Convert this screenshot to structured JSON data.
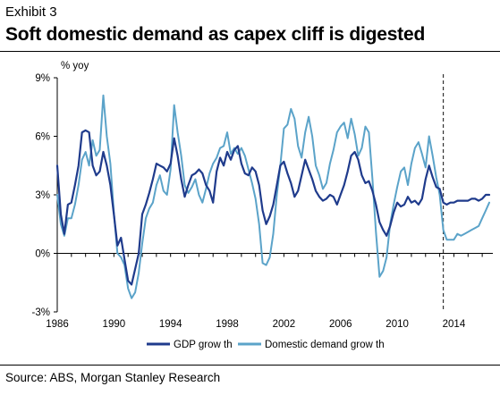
{
  "header": {
    "exhibit": "Exhibit 3",
    "title": "Soft domestic demand as capex cliff is digested"
  },
  "footer": {
    "source": "Source: ABS, Morgan Stanley Research"
  },
  "chart_data": {
    "type": "line",
    "ylabel": "% yoy",
    "xlim": [
      1986,
      2016.75
    ],
    "ylim": [
      -3,
      9
    ],
    "y_ticks": [
      9,
      6,
      3,
      0,
      -3
    ],
    "y_tick_labels": [
      "9%",
      "6%",
      "3%",
      "0%",
      "-3%"
    ],
    "x_ticks": [
      1986,
      1990,
      1994,
      1998,
      2002,
      2006,
      2010,
      2014
    ],
    "x_tick_labels": [
      "1986",
      "1990",
      "1994",
      "1998",
      "2002",
      "2006",
      "2010",
      "2014"
    ],
    "forecast_start": 2013.25,
    "legend_position": "bottom",
    "colors": {
      "gdp": "#1f3b8c",
      "domestic": "#5ba3c9"
    },
    "series": [
      {
        "name": "GDP grow th",
        "key": "gdp",
        "x": [
          1986,
          1986.25,
          1986.5,
          1986.75,
          1987,
          1987.25,
          1987.5,
          1987.75,
          1988,
          1988.25,
          1988.5,
          1988.75,
          1989,
          1989.25,
          1989.5,
          1989.75,
          1990,
          1990.25,
          1990.5,
          1990.75,
          1991,
          1991.25,
          1991.5,
          1991.75,
          1992,
          1992.25,
          1992.5,
          1992.75,
          1993,
          1993.25,
          1993.5,
          1993.75,
          1994,
          1994.25,
          1994.5,
          1994.75,
          1995,
          1995.25,
          1995.5,
          1995.75,
          1996,
          1996.25,
          1996.5,
          1996.75,
          1997,
          1997.25,
          1997.5,
          1997.75,
          1998,
          1998.25,
          1998.5,
          1998.75,
          1999,
          1999.25,
          1999.5,
          1999.75,
          2000,
          2000.25,
          2000.5,
          2000.75,
          2001,
          2001.25,
          2001.5,
          2001.75,
          2002,
          2002.25,
          2002.5,
          2002.75,
          2003,
          2003.25,
          2003.5,
          2003.75,
          2004,
          2004.25,
          2004.5,
          2004.75,
          2005,
          2005.25,
          2005.5,
          2005.75,
          2006,
          2006.25,
          2006.5,
          2006.75,
          2007,
          2007.25,
          2007.5,
          2007.75,
          2008,
          2008.25,
          2008.5,
          2008.75,
          2009,
          2009.25,
          2009.5,
          2009.75,
          2010,
          2010.25,
          2010.5,
          2010.75,
          2011,
          2011.25,
          2011.5,
          2011.75,
          2012,
          2012.25,
          2012.5,
          2012.75,
          2013,
          2013.25,
          2013.5,
          2013.75,
          2014,
          2014.25,
          2014.5,
          2014.75,
          2015,
          2015.25,
          2015.5,
          2015.75,
          2016,
          2016.25,
          2016.5
        ],
        "values": [
          4.5,
          2.0,
          1.0,
          2.5,
          2.6,
          3.5,
          4.5,
          6.2,
          6.3,
          6.2,
          4.5,
          4.0,
          4.2,
          5.2,
          4.5,
          3.5,
          2.0,
          0.4,
          0.8,
          -0.3,
          -1.4,
          -1.6,
          -0.8,
          0.0,
          2.0,
          2.5,
          3.1,
          3.8,
          4.6,
          4.5,
          4.4,
          4.2,
          4.6,
          5.9,
          5.0,
          3.8,
          2.9,
          3.5,
          4.0,
          4.1,
          4.3,
          4.1,
          3.5,
          3.2,
          2.6,
          4.2,
          4.9,
          4.5,
          5.2,
          4.8,
          5.3,
          5.5,
          4.6,
          4.1,
          4.0,
          4.4,
          4.2,
          3.5,
          2.2,
          1.5,
          1.9,
          2.5,
          3.5,
          4.5,
          4.7,
          4.1,
          3.6,
          2.9,
          3.2,
          4.0,
          4.8,
          4.3,
          3.8,
          3.2,
          2.9,
          2.7,
          2.8,
          3.0,
          2.9,
          2.5,
          3.0,
          3.5,
          4.2,
          5.0,
          5.2,
          4.8,
          4.0,
          3.6,
          3.7,
          3.2,
          2.5,
          1.6,
          1.2,
          0.9,
          1.4,
          2.1,
          2.6,
          2.4,
          2.5,
          2.9,
          2.6,
          2.7,
          2.5,
          2.8,
          3.8,
          4.5,
          3.9,
          3.4,
          3.3,
          2.6,
          2.5,
          2.6,
          2.6,
          2.7,
          2.7,
          2.7,
          2.7,
          2.8,
          2.8,
          2.7,
          2.8,
          3.0,
          3.0
        ]
      },
      {
        "name": "Domestic demand grow th",
        "key": "domestic",
        "x": [
          1986,
          1986.25,
          1986.5,
          1986.75,
          1987,
          1987.25,
          1987.5,
          1987.75,
          1988,
          1988.25,
          1988.5,
          1988.75,
          1989,
          1989.25,
          1989.5,
          1989.75,
          1990,
          1990.25,
          1990.5,
          1990.75,
          1991,
          1991.25,
          1991.5,
          1991.75,
          1992,
          1992.25,
          1992.5,
          1992.75,
          1993,
          1993.25,
          1993.5,
          1993.75,
          1994,
          1994.25,
          1994.5,
          1994.75,
          1995,
          1995.25,
          1995.5,
          1995.75,
          1996,
          1996.25,
          1996.5,
          1996.75,
          1997,
          1997.25,
          1997.5,
          1997.75,
          1998,
          1998.25,
          1998.5,
          1998.75,
          1999,
          1999.25,
          1999.5,
          1999.75,
          2000,
          2000.25,
          2000.5,
          2000.75,
          2001,
          2001.25,
          2001.5,
          2001.75,
          2002,
          2002.25,
          2002.5,
          2002.75,
          2003,
          2003.25,
          2003.5,
          2003.75,
          2004,
          2004.25,
          2004.5,
          2004.75,
          2005,
          2005.25,
          2005.5,
          2005.75,
          2006,
          2006.25,
          2006.5,
          2006.75,
          2007,
          2007.25,
          2007.5,
          2007.75,
          2008,
          2008.25,
          2008.5,
          2008.75,
          2009,
          2009.25,
          2009.5,
          2009.75,
          2010,
          2010.25,
          2010.5,
          2010.75,
          2011,
          2011.25,
          2011.5,
          2011.75,
          2012,
          2012.25,
          2012.5,
          2012.75,
          2013,
          2013.25,
          2013.5,
          2013.75,
          2014,
          2014.25,
          2014.5,
          2014.75,
          2015,
          2015.25,
          2015.5,
          2015.75,
          2016,
          2016.25,
          2016.5
        ],
        "values": [
          3.0,
          1.5,
          0.9,
          1.8,
          1.8,
          2.5,
          3.5,
          4.8,
          5.2,
          4.5,
          5.8,
          5.0,
          5.3,
          8.1,
          6.0,
          4.6,
          2.1,
          0.0,
          -0.2,
          -0.6,
          -1.8,
          -2.3,
          -2.0,
          -1.0,
          0.5,
          1.8,
          2.3,
          2.6,
          3.5,
          4.0,
          3.2,
          3.0,
          4.3,
          7.6,
          6.2,
          5.0,
          3.5,
          3.1,
          3.4,
          3.8,
          3.0,
          2.6,
          3.3,
          4.1,
          4.6,
          4.9,
          5.4,
          5.5,
          6.2,
          5.1,
          5.4,
          5.1,
          5.4,
          5.0,
          4.3,
          3.6,
          2.8,
          1.5,
          -0.5,
          -0.6,
          -0.2,
          1.0,
          3.0,
          4.5,
          6.4,
          6.6,
          7.4,
          6.9,
          5.5,
          4.9,
          6.2,
          7.0,
          6.0,
          4.5,
          4.0,
          3.3,
          3.6,
          4.6,
          5.3,
          6.2,
          6.5,
          6.7,
          5.9,
          6.9,
          6.1,
          5.0,
          5.4,
          6.5,
          6.2,
          3.8,
          1.1,
          -1.2,
          -0.9,
          -0.2,
          1.5,
          2.5,
          3.4,
          4.2,
          4.4,
          3.5,
          4.6,
          5.4,
          5.7,
          5.1,
          4.4,
          6.0,
          5.0,
          3.9,
          3.0,
          1.2,
          0.7,
          0.7,
          0.7,
          1.0,
          0.9,
          1.0,
          1.1,
          1.2,
          1.3,
          1.4,
          1.8,
          2.2,
          2.6
        ]
      }
    ]
  }
}
